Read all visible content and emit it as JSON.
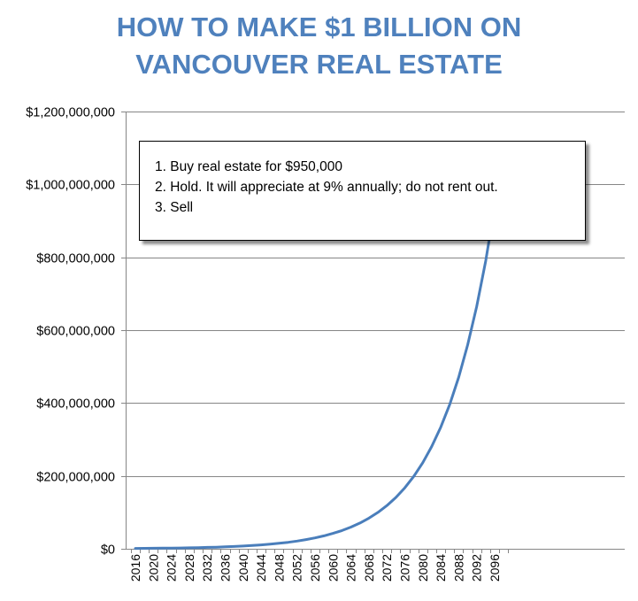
{
  "title_lines": [
    "HOW TO MAKE $1 BILLION ON",
    "VANCOUVER REAL ESTATE"
  ],
  "annotation": {
    "lines": [
      "1. Buy real estate for $950,000",
      "2. Hold. It will appreciate  at 9% annually; do not rent out.",
      "3. Sell"
    ]
  },
  "colors": {
    "title": "#4f81bd",
    "line": "#4a7ebb",
    "grid": "#868686",
    "axis": "#868686"
  },
  "chart_data": {
    "type": "line",
    "title": "HOW TO MAKE $1 BILLION ON VANCOUVER REAL ESTATE",
    "xlabel": "",
    "ylabel": "",
    "ylim": [
      0,
      1200000000
    ],
    "grid": true,
    "legend": "none",
    "x_tick_labels": [
      "2016",
      "2020",
      "2024",
      "2028",
      "2032",
      "2036",
      "2040",
      "2044",
      "2048",
      "2052",
      "2056",
      "2060",
      "2064",
      "2068",
      "2072",
      "2076",
      "2080",
      "2084",
      "2088",
      "2092",
      "2096"
    ],
    "y_tick_labels": [
      "$0",
      "$200,000,000",
      "$400,000,000",
      "$600,000,000",
      "$800,000,000",
      "$1,000,000,000",
      "$1,200,000,000"
    ],
    "y_tick_values": [
      0,
      200000000,
      400000000,
      600000000,
      800000000,
      1000000000,
      1200000000
    ],
    "series": [
      {
        "start_value": 950000,
        "growth_rate": 0.09,
        "x": [
          2016,
          2018,
          2020,
          2022,
          2024,
          2026,
          2028,
          2030,
          2032,
          2034,
          2036,
          2038,
          2040,
          2042,
          2044,
          2046,
          2048,
          2050,
          2052,
          2054,
          2056,
          2058,
          2060,
          2062,
          2064,
          2066,
          2068,
          2070,
          2072,
          2074,
          2076,
          2078,
          2080,
          2082,
          2084,
          2086,
          2088,
          2090,
          2092,
          2094,
          2096,
          2098
        ],
        "values": [
          950000,
          1130000,
          1340000,
          1590000,
          1890000,
          2250000,
          2680000,
          3180000,
          3780000,
          4490000,
          5330000,
          6340000,
          7530000,
          8940000,
          10630000,
          12620000,
          15000000,
          17820000,
          21170000,
          25150000,
          29880000,
          35500000,
          42180000,
          50110000,
          59540000,
          70740000,
          84040000,
          99850000,
          118630000,
          140940000,
          167450000,
          198950000,
          236370000,
          280830000,
          333650000,
          396410000,
          470970000,
          559560000,
          664810000,
          789860000,
          938420000,
          1114930000
        ]
      }
    ]
  }
}
